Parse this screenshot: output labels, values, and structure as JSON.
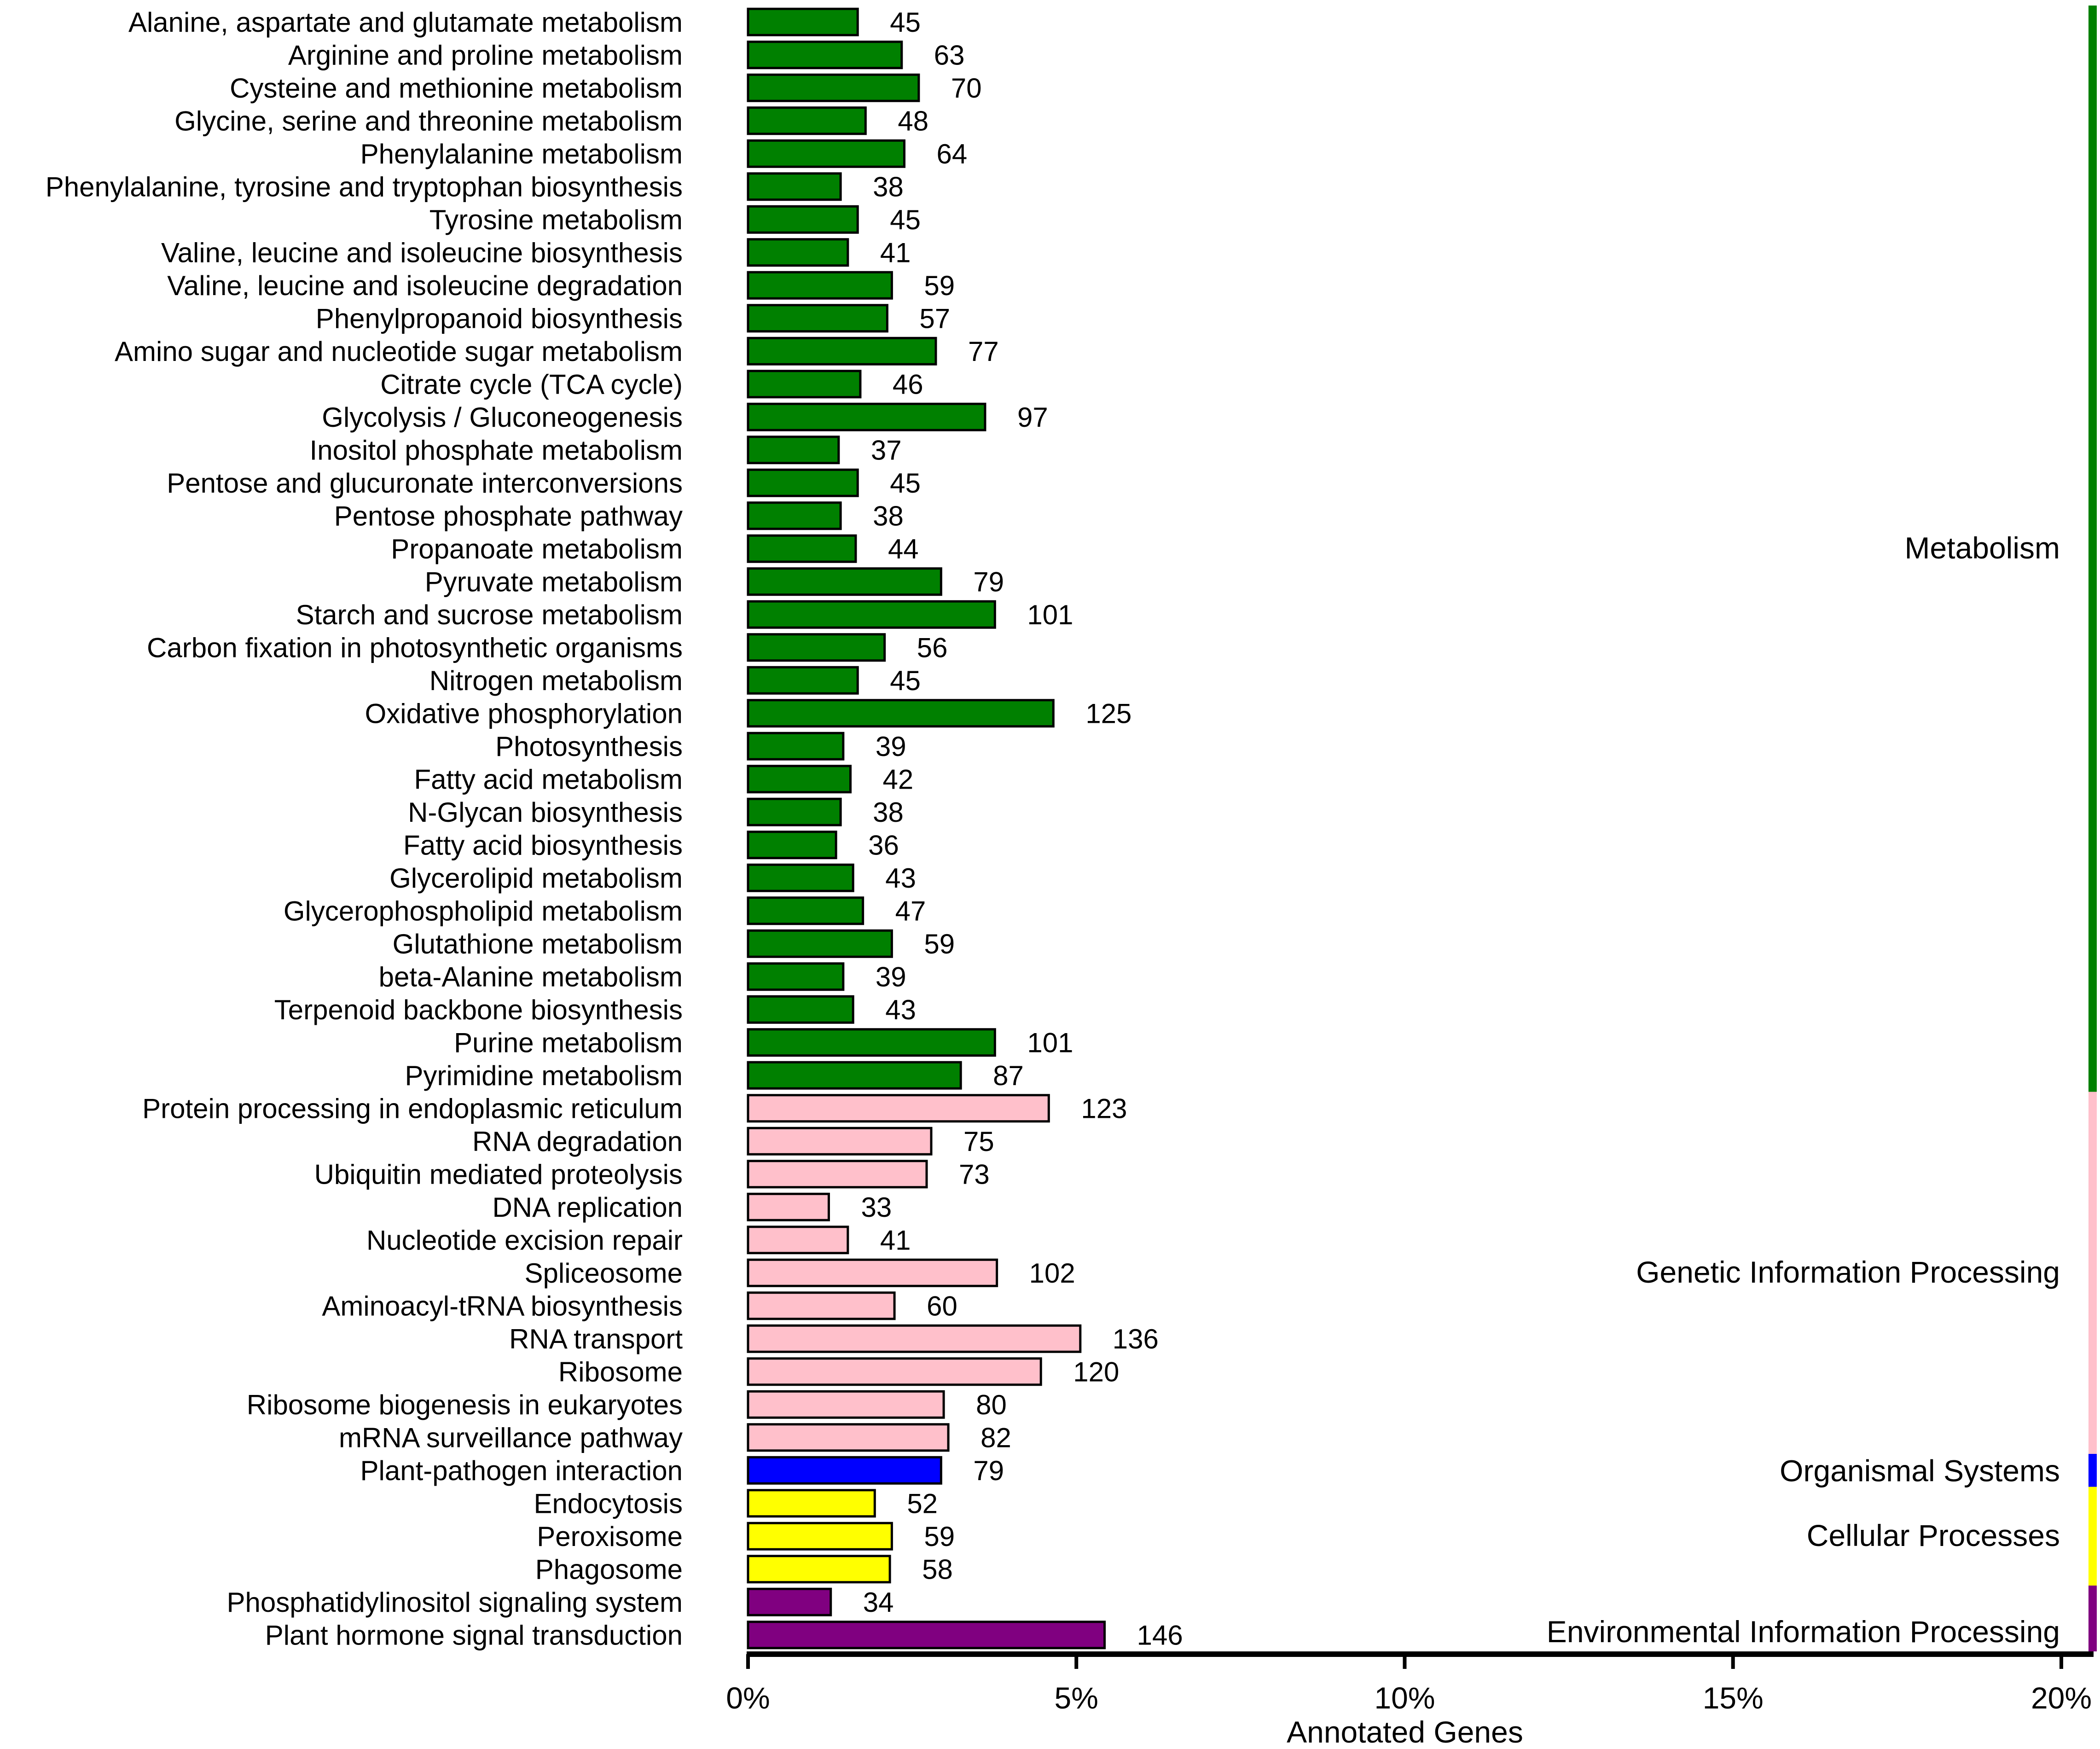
{
  "chart_data": {
    "type": "bar",
    "orientation": "horizontal",
    "xlabel": "Annotated Genes",
    "xlim": [
      0,
      20
    ],
    "x_ticks": [
      0,
      5,
      10,
      15,
      20
    ],
    "x_tick_labels": [
      "0%",
      "5%",
      "10%",
      "15%",
      "20%"
    ],
    "categories": [
      "Alanine, aspartate and glutamate metabolism",
      "Arginine and proline metabolism",
      "Cysteine and methionine metabolism",
      "Glycine, serine and threonine metabolism",
      "Phenylalanine metabolism",
      "Phenylalanine, tyrosine and tryptophan biosynthesis",
      "Tyrosine metabolism",
      "Valine, leucine and isoleucine biosynthesis",
      "Valine, leucine and isoleucine degradation",
      "Phenylpropanoid biosynthesis",
      "Amino sugar and nucleotide sugar metabolism",
      "Citrate cycle (TCA cycle)",
      "Glycolysis / Gluconeogenesis",
      "Inositol phosphate metabolism",
      "Pentose and glucuronate interconversions",
      "Pentose phosphate pathway",
      "Propanoate metabolism",
      "Pyruvate metabolism",
      "Starch and sucrose metabolism",
      "Carbon fixation in photosynthetic organisms",
      "Nitrogen metabolism",
      "Oxidative phosphorylation",
      "Photosynthesis",
      "Fatty acid metabolism",
      "N-Glycan biosynthesis",
      "Fatty acid biosynthesis",
      "Glycerolipid metabolism",
      "Glycerophospholipid metabolism",
      "Glutathione metabolism",
      "beta-Alanine metabolism",
      "Terpenoid backbone biosynthesis",
      "Purine metabolism",
      "Pyrimidine metabolism",
      "Protein processing in endoplasmic reticulum",
      "RNA degradation",
      "Ubiquitin mediated proteolysis",
      "DNA replication",
      "Nucleotide excision repair",
      "Spliceosome",
      "Aminoacyl-tRNA biosynthesis",
      "RNA transport",
      "Ribosome",
      "Ribosome biogenesis in eukaryotes",
      "mRNA surveillance pathway",
      "Plant-pathogen interaction",
      "Endocytosis",
      "Peroxisome",
      "Phagosome",
      "Phosphatidylinositol signaling system",
      "Plant hormone signal transduction"
    ],
    "counts": [
      45,
      63,
      70,
      48,
      64,
      38,
      45,
      41,
      59,
      57,
      77,
      46,
      97,
      37,
      45,
      38,
      44,
      79,
      101,
      56,
      45,
      125,
      39,
      42,
      38,
      36,
      43,
      47,
      59,
      39,
      43,
      101,
      87,
      123,
      75,
      73,
      33,
      41,
      102,
      60,
      136,
      120,
      80,
      82,
      79,
      52,
      59,
      58,
      34,
      146
    ],
    "percent_values": [
      1.67,
      2.34,
      2.6,
      1.79,
      2.38,
      1.41,
      1.67,
      1.52,
      2.19,
      2.12,
      2.86,
      1.71,
      3.61,
      1.38,
      1.67,
      1.41,
      1.64,
      2.94,
      3.76,
      2.08,
      1.67,
      4.65,
      1.45,
      1.56,
      1.41,
      1.34,
      1.6,
      1.75,
      2.19,
      1.45,
      1.6,
      3.76,
      3.24,
      4.58,
      2.79,
      2.72,
      1.23,
      1.52,
      3.79,
      2.23,
      5.06,
      4.46,
      2.98,
      3.05,
      2.94,
      1.93,
      2.19,
      2.16,
      1.26,
      5.43
    ],
    "groups": [
      {
        "name": "Metabolism",
        "start": 0,
        "count": 33,
        "color": "#008000"
      },
      {
        "name": "Genetic Information Processing",
        "start": 33,
        "count": 11,
        "color": "#ffc0cb"
      },
      {
        "name": "Organismal Systems",
        "start": 44,
        "count": 1,
        "color": "#0000ff"
      },
      {
        "name": "Cellular Processes",
        "start": 45,
        "count": 3,
        "color": "#ffff00"
      },
      {
        "name": "Environmental Information Processing",
        "start": 48,
        "count": 2,
        "color": "#800080"
      }
    ]
  }
}
